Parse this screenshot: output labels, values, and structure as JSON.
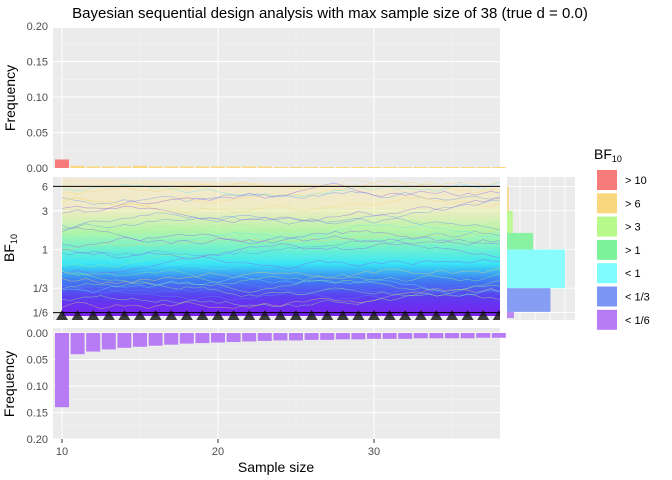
{
  "chart_data": {
    "type": "line",
    "title": "Bayesian sequential design analysis with max sample size of 38 (true d = 0.0)",
    "xlabel": "Sample size",
    "x_range": [
      10,
      38
    ],
    "x_ticks": [
      "10",
      "20",
      "30"
    ],
    "top_panel": {
      "ylabel": "Frequency",
      "ylim": [
        0,
        0.2
      ],
      "y_ticks": [
        "0.00",
        "0.05",
        "0.10",
        "0.15",
        "0.20"
      ],
      "bars_bf_gt_6": [
        {
          "x": 10,
          "value": 0.012
        },
        {
          "x": 11,
          "value": 0.003
        },
        {
          "x": 12,
          "value": 0.002
        },
        {
          "x": 13,
          "value": 0.002
        },
        {
          "x": 14,
          "value": 0.002
        },
        {
          "x": 15,
          "value": 0.003
        },
        {
          "x": 16,
          "value": 0.002
        },
        {
          "x": 17,
          "value": 0.002
        },
        {
          "x": 18,
          "value": 0.002
        },
        {
          "x": 19,
          "value": 0.002
        },
        {
          "x": 20,
          "value": 0.002
        },
        {
          "x": 21,
          "value": 0.002
        },
        {
          "x": 22,
          "value": 0.002
        },
        {
          "x": 23,
          "value": 0.002
        },
        {
          "x": 24,
          "value": 0.001
        },
        {
          "x": 25,
          "value": 0.001
        },
        {
          "x": 26,
          "value": 0.001
        },
        {
          "x": 27,
          "value": 0.001
        },
        {
          "x": 28,
          "value": 0.001
        },
        {
          "x": 29,
          "value": 0.001
        },
        {
          "x": 30,
          "value": 0.001
        },
        {
          "x": 31,
          "value": 0.001
        },
        {
          "x": 32,
          "value": 0.001
        },
        {
          "x": 33,
          "value": 0.001
        },
        {
          "x": 34,
          "value": 0.001
        },
        {
          "x": 35,
          "value": 0.001
        },
        {
          "x": 36,
          "value": 0.001
        },
        {
          "x": 37,
          "value": 0.001
        },
        {
          "x": 38,
          "value": 0.001
        }
      ]
    },
    "middle_panel": {
      "ylabel": "BF10",
      "y_scale": "log",
      "y_ticks": [
        "6",
        "3",
        "1",
        "1/3",
        "1/6"
      ],
      "y_tick_values": [
        6,
        3,
        1,
        0.3333,
        0.1667
      ],
      "boundaries": [
        6,
        0.1667
      ],
      "final_distribution": [
        {
          "category": "> 6",
          "value": 0.03
        },
        {
          "category": "> 3",
          "value": 0.1
        },
        {
          "category": "> 1",
          "value": 0.45
        },
        {
          "category": "< 1",
          "value": 1.0
        },
        {
          "category": "< 1/3",
          "value": 0.75
        },
        {
          "category": "< 1/6",
          "value": 0.12
        }
      ]
    },
    "bottom_panel": {
      "ylabel": "Frequency",
      "ylim": [
        0,
        0.2
      ],
      "y_ticks": [
        "0.00",
        "0.05",
        "0.10",
        "0.15",
        "0.20"
      ],
      "y_reversed": true,
      "bars_bf_lt_1_6": [
        {
          "x": 10,
          "value": 0.14
        },
        {
          "x": 11,
          "value": 0.04
        },
        {
          "x": 12,
          "value": 0.035
        },
        {
          "x": 13,
          "value": 0.031
        },
        {
          "x": 14,
          "value": 0.028
        },
        {
          "x": 15,
          "value": 0.026
        },
        {
          "x": 16,
          "value": 0.024
        },
        {
          "x": 17,
          "value": 0.022
        },
        {
          "x": 18,
          "value": 0.02
        },
        {
          "x": 19,
          "value": 0.019
        },
        {
          "x": 20,
          "value": 0.018
        },
        {
          "x": 21,
          "value": 0.017
        },
        {
          "x": 22,
          "value": 0.016
        },
        {
          "x": 23,
          "value": 0.015
        },
        {
          "x": 24,
          "value": 0.014
        },
        {
          "x": 25,
          "value": 0.014
        },
        {
          "x": 26,
          "value": 0.013
        },
        {
          "x": 27,
          "value": 0.013
        },
        {
          "x": 28,
          "value": 0.012
        },
        {
          "x": 29,
          "value": 0.012
        },
        {
          "x": 30,
          "value": 0.011
        },
        {
          "x": 31,
          "value": 0.011
        },
        {
          "x": 32,
          "value": 0.011
        },
        {
          "x": 33,
          "value": 0.01
        },
        {
          "x": 34,
          "value": 0.01
        },
        {
          "x": 35,
          "value": 0.01
        },
        {
          "x": 36,
          "value": 0.01
        },
        {
          "x": 37,
          "value": 0.009
        },
        {
          "x": 38,
          "value": 0.009
        }
      ]
    },
    "legend": {
      "title": "BF10",
      "position": "right",
      "items": [
        {
          "label": "> 10",
          "color": "#f87b7b"
        },
        {
          "label": "> 6",
          "color": "#f9d77c"
        },
        {
          "label": "> 3",
          "color": "#b7f98a"
        },
        {
          "label": "> 1",
          "color": "#7cf39a"
        },
        {
          "label": "< 1",
          "color": "#7dfdfd"
        },
        {
          "label": "< 1/3",
          "color": "#7b95f5"
        },
        {
          "label": "< 1/6",
          "color": "#b77cf5"
        }
      ]
    },
    "panel_background": "#ebebeb",
    "grid": true
  }
}
